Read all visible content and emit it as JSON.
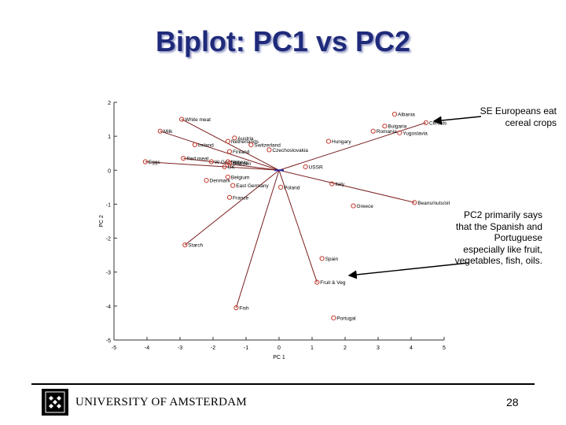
{
  "slide": {
    "title": "Biplot: PC1 vs PC2",
    "note_top": "SE Europeans eat cereal crops",
    "note_bottom": "PC2 primarily says that the Spanish and Portuguese especially like fruit, vegetables, fish, oils.",
    "footer_university": "UNIVERSITY OF AMSTERDAM",
    "page_number": "28"
  },
  "colors": {
    "title": "#1f2a7a",
    "point_ring": "#c0392b",
    "center_marker": "#2a2aa8",
    "arrow_line": "#7a1f1f",
    "axes": "#333333"
  },
  "chart_data": {
    "type": "scatter",
    "title": "",
    "xlabel": "PC 1",
    "ylabel": "PC 2",
    "xlim": [
      -5,
      5
    ],
    "ylim": [
      -5,
      2
    ],
    "xticks": [
      -5,
      -4,
      -3,
      -2,
      -1,
      0,
      1,
      2,
      3,
      4,
      5
    ],
    "yticks": [
      2,
      1,
      0,
      -1,
      -2,
      -3,
      -4,
      -5
    ],
    "grid": false,
    "legend": "none",
    "countries": [
      {
        "label": "Albania",
        "x": 3.5,
        "y": 1.65
      },
      {
        "label": "Bulgaria",
        "x": 3.2,
        "y": 1.3
      },
      {
        "label": "Romania",
        "x": 2.85,
        "y": 1.15
      },
      {
        "label": "Yugoslavia",
        "x": 3.65,
        "y": 1.1
      },
      {
        "label": "Hungary",
        "x": 1.5,
        "y": 0.85
      },
      {
        "label": "USSR",
        "x": 0.8,
        "y": 0.1
      },
      {
        "label": "Italy",
        "x": 1.6,
        "y": -0.4
      },
      {
        "label": "Poland",
        "x": 0.05,
        "y": -0.5
      },
      {
        "label": "Greece",
        "x": 2.25,
        "y": -1.05
      },
      {
        "label": "Spain",
        "x": 1.3,
        "y": -2.6
      },
      {
        "label": "Portugal",
        "x": 1.65,
        "y": -4.35
      },
      {
        "label": "Austria",
        "x": -1.35,
        "y": 0.95
      },
      {
        "label": "Netherlands",
        "x": -1.55,
        "y": 0.85
      },
      {
        "label": "Switzerland",
        "x": -0.85,
        "y": 0.75
      },
      {
        "label": "Czechoslovakia",
        "x": -0.3,
        "y": 0.6
      },
      {
        "label": "Finland",
        "x": -1.5,
        "y": 0.55
      },
      {
        "label": "Ireland",
        "x": -2.55,
        "y": 0.75
      },
      {
        "label": "W Germany",
        "x": -2.05,
        "y": 0.25
      },
      {
        "label": "Norway",
        "x": -1.55,
        "y": 0.25
      },
      {
        "label": "Sweden",
        "x": -1.5,
        "y": 0.2
      },
      {
        "label": "UK",
        "x": -1.65,
        "y": 0.1
      },
      {
        "label": "Belgium",
        "x": -1.55,
        "y": -0.2
      },
      {
        "label": "Denmark",
        "x": -2.2,
        "y": -0.3
      },
      {
        "label": "East Germany",
        "x": -1.4,
        "y": -0.45
      },
      {
        "label": "France",
        "x": -1.5,
        "y": -0.8
      }
    ],
    "variables": [
      {
        "label": "White meat",
        "x": -2.95,
        "y": 1.5
      },
      {
        "label": "Milk",
        "x": -3.6,
        "y": 1.15
      },
      {
        "label": "Red meat",
        "x": -2.9,
        "y": 0.35
      },
      {
        "label": "Eggs",
        "x": -4.05,
        "y": 0.25
      },
      {
        "label": "Starch",
        "x": -2.85,
        "y": -2.2
      },
      {
        "label": "Fish",
        "x": -1.3,
        "y": -4.05
      },
      {
        "label": "Fruit & Veg",
        "x": 1.15,
        "y": -3.3
      },
      {
        "label": "Beans/nuts/oil",
        "x": 4.1,
        "y": -0.95
      },
      {
        "label": "Cereals",
        "x": 4.45,
        "y": 1.4
      }
    ],
    "annotations": [
      "SE Europeans eat cereal crops",
      "PC2 primarily says that the Spanish and Portuguese especially like fruit, vegetables, fish, oils."
    ]
  }
}
